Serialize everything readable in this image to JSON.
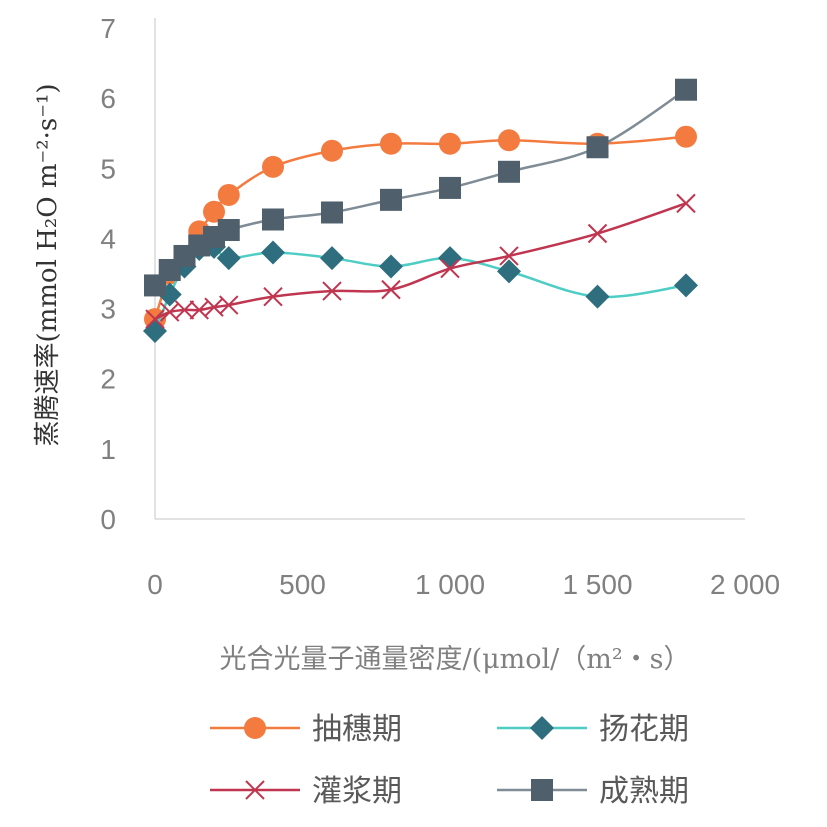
{
  "chart_data": {
    "type": "line",
    "xlabel": "光合光量子通量密度/(μmol/（m²・s）",
    "ylabel": "蒸腾速率(mmol H₂O m⁻²·s⁻¹)",
    "xlim": [
      0,
      2000
    ],
    "ylim": [
      0,
      7
    ],
    "x_ticks": [
      "0",
      "500",
      "1 000",
      "1 500",
      "2 000"
    ],
    "y_ticks": [
      "0",
      "1",
      "2",
      "3",
      "4",
      "5",
      "6",
      "7"
    ],
    "grid": false,
    "legend_position": "bottom",
    "series": [
      {
        "name": "抽穗期",
        "color": "#F47B3F",
        "marker": "circle",
        "x": [
          0,
          50,
          100,
          150,
          200,
          250,
          400,
          600,
          800,
          1000,
          1200,
          1500,
          1800
        ],
        "y": [
          2.85,
          3.5,
          3.75,
          4.1,
          4.38,
          4.62,
          5.02,
          5.25,
          5.35,
          5.35,
          5.4,
          5.35,
          5.45
        ]
      },
      {
        "name": "扬花期",
        "color": "#4ECDC4",
        "marker_color": "#2E6E7E",
        "marker": "diamond",
        "x": [
          0,
          50,
          100,
          150,
          200,
          250,
          400,
          600,
          800,
          1000,
          1200,
          1500,
          1800
        ],
        "y": [
          2.68,
          3.2,
          3.6,
          3.85,
          3.88,
          3.72,
          3.8,
          3.72,
          3.6,
          3.72,
          3.53,
          3.17,
          3.33
        ]
      },
      {
        "name": "灌浆期",
        "color": "#C0354F",
        "marker": "x",
        "x": [
          0,
          50,
          100,
          150,
          200,
          250,
          400,
          600,
          800,
          1000,
          1200,
          1500,
          1800
        ],
        "y": [
          2.85,
          2.95,
          2.98,
          2.98,
          3.02,
          3.05,
          3.17,
          3.25,
          3.27,
          3.57,
          3.75,
          4.07,
          4.5
        ]
      },
      {
        "name": "成熟期",
        "color": "#7F8C95",
        "marker_color": "#4F5F6B",
        "marker": "square",
        "x": [
          0,
          50,
          100,
          150,
          200,
          250,
          400,
          600,
          800,
          1000,
          1200,
          1500,
          1800
        ],
        "y": [
          3.33,
          3.55,
          3.75,
          3.9,
          4.02,
          4.12,
          4.27,
          4.37,
          4.55,
          4.72,
          4.95,
          5.3,
          6.12
        ]
      }
    ]
  }
}
